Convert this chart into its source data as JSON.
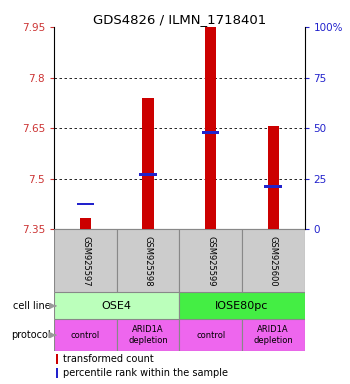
{
  "title": "GDS4826 / ILMN_1718401",
  "samples": [
    "GSM925597",
    "GSM925598",
    "GSM925599",
    "GSM925600"
  ],
  "bar_base": 7.35,
  "transformed_counts": [
    7.385,
    7.74,
    7.95,
    7.655
  ],
  "percentile_ranks": [
    7.425,
    7.513,
    7.638,
    7.478
  ],
  "ylim": [
    7.35,
    7.95
  ],
  "yticks": [
    7.35,
    7.5,
    7.65,
    7.8,
    7.95
  ],
  "ytick_labels": [
    "7.35",
    "7.5",
    "7.65",
    "7.8",
    "7.95"
  ],
  "right_ytick_pcts": [
    0,
    25,
    50,
    75,
    100
  ],
  "right_ytick_labels": [
    "0",
    "25",
    "50",
    "75",
    "100%"
  ],
  "bar_color": "#cc0000",
  "percentile_color": "#2222cc",
  "cell_line_labels": [
    "OSE4",
    "IOSE80pc"
  ],
  "cell_line_spans": [
    [
      0,
      2
    ],
    [
      2,
      4
    ]
  ],
  "cell_line_colors": [
    "#bbffbb",
    "#44ee44"
  ],
  "protocol_labels": [
    "control",
    "ARID1A\ndepletion",
    "control",
    "ARID1A\ndepletion"
  ],
  "protocol_color": "#ee66ee",
  "left_tick_color": "#cc3333",
  "right_tick_color": "#2222cc",
  "bar_width": 0.18,
  "gsm_bg": "#cccccc",
  "legend_items": [
    "transformed count",
    "percentile rank within the sample"
  ],
  "arrow_color": "#999999"
}
